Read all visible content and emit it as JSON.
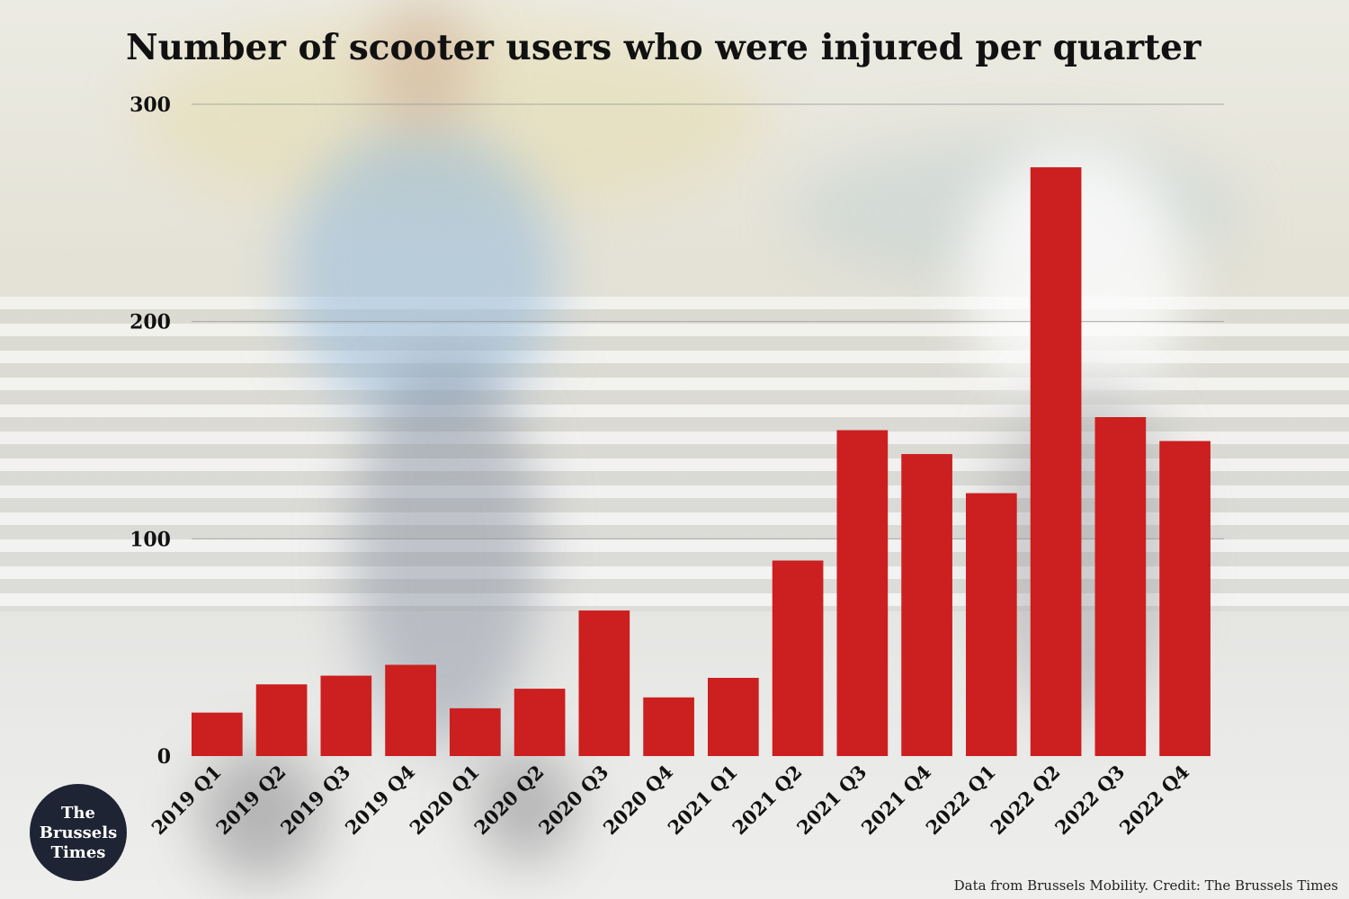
{
  "chart_data": {
    "type": "bar",
    "title": "Number of scooter users who were injured per quarter",
    "categories": [
      "2019 Q1",
      "2019 Q2",
      "2019 Q3",
      "2019 Q4",
      "2020 Q1",
      "2020 Q2",
      "2020 Q3",
      "2020 Q4",
      "2021 Q1",
      "2021 Q2",
      "2021 Q3",
      "2021 Q4",
      "2022 Q1",
      "2022 Q2",
      "2022 Q3",
      "2022 Q4"
    ],
    "values": [
      20,
      33,
      37,
      42,
      22,
      31,
      67,
      27,
      36,
      90,
      150,
      139,
      121,
      271,
      156,
      145
    ],
    "yticks": [
      "300",
      "200",
      "100",
      "0"
    ],
    "ylim": [
      0,
      300
    ],
    "grid": true,
    "bar_color": "#cc1f1f",
    "xlabel": "",
    "ylabel": ""
  },
  "credit": "Data from Brussels Mobility. Credit: The Brussels Times",
  "logo": {
    "lines": [
      "The",
      "Brussels",
      "Times"
    ]
  }
}
